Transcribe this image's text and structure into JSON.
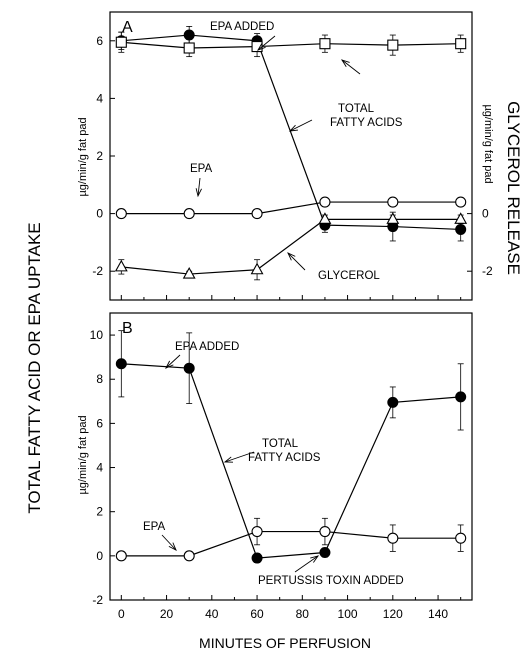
{
  "figure": {
    "left_label": "TOTAL FATTY ACID OR EPA UPTAKE",
    "right_label": "GLYCEROL RELEASE",
    "xlabel": "MINUTES OF PERFUSION"
  },
  "chart_data": [
    {
      "type": "line",
      "panel_label": "A",
      "ylabel": "µg/min/g fat pad",
      "right_axis_label": "µg/min/g fat pad",
      "xlim": [
        -5,
        155
      ],
      "ylim": [
        -3,
        7
      ],
      "yticks": [
        -2,
        0,
        2,
        4,
        6
      ],
      "right_yticks": [
        -2,
        0
      ],
      "x": [
        0,
        30,
        60,
        90,
        120,
        150
      ],
      "series": [
        {
          "marker": "filled-circle",
          "x": [
            0,
            30,
            60,
            90,
            120,
            150
          ],
          "values": [
            6.0,
            6.2,
            6.0,
            -0.4,
            -0.45,
            -0.55
          ],
          "err": [
            0.3,
            0.3,
            0.25,
            0.25,
            0.5,
            0.4
          ]
        },
        {
          "marker": "open-square",
          "x": [
            0,
            30,
            60,
            90,
            120,
            150
          ],
          "values": [
            5.95,
            5.75,
            5.8,
            5.9,
            5.85,
            5.9
          ],
          "err": [
            0.35,
            0.3,
            0.35,
            0.3,
            0.35,
            0.3
          ]
        },
        {
          "marker": "open-circle",
          "x": [
            0,
            30,
            60,
            90,
            120,
            150
          ],
          "values": [
            0.0,
            0.0,
            0.0,
            0.4,
            0.4,
            0.4
          ],
          "err": [
            0,
            0,
            0,
            0,
            0,
            0
          ]
        },
        {
          "marker": "open-triangle",
          "x": [
            0,
            30,
            60,
            90,
            120,
            150
          ],
          "values": [
            -1.85,
            -2.1,
            -1.95,
            -0.2,
            -0.2,
            -0.2
          ],
          "err": [
            0.25,
            0.1,
            0.35,
            0.15,
            0.15,
            0.15
          ]
        }
      ],
      "annotations": [
        {
          "key": "epa_added",
          "text": "EPA ADDED"
        },
        {
          "key": "total_fa",
          "text": "TOTAL"
        },
        {
          "key": "total_fa2",
          "text": "FATTY ACIDS"
        },
        {
          "key": "epa",
          "text": "EPA"
        },
        {
          "key": "glycerol",
          "text": "GLYCEROL"
        }
      ]
    },
    {
      "type": "line",
      "panel_label": "B",
      "ylabel": "µg/min/g fat pad",
      "xlim": [
        -5,
        155
      ],
      "ylim": [
        -2,
        11
      ],
      "yticks": [
        -2,
        0,
        2,
        4,
        6,
        8,
        10
      ],
      "xticks": [
        0,
        20,
        40,
        60,
        80,
        100,
        120,
        140
      ],
      "series": [
        {
          "marker": "filled-circle",
          "x": [
            0,
            30,
            60,
            90,
            120,
            150
          ],
          "values": [
            8.7,
            8.5,
            -0.1,
            0.15,
            6.95,
            7.2
          ],
          "err": [
            1.5,
            1.6,
            0.2,
            0.2,
            0.7,
            1.5
          ]
        },
        {
          "marker": "open-circle",
          "x": [
            0,
            30,
            60,
            90,
            120,
            150
          ],
          "values": [
            0.0,
            0.0,
            1.1,
            1.1,
            0.8,
            0.8
          ],
          "err": [
            0,
            0,
            0.6,
            0.6,
            0.6,
            0.6
          ]
        }
      ],
      "annotations": [
        {
          "key": "epa_added",
          "text": "EPA ADDED"
        },
        {
          "key": "total_fa",
          "text": "TOTAL"
        },
        {
          "key": "total_fa2",
          "text": "FATTY ACIDS"
        },
        {
          "key": "epa",
          "text": "EPA"
        },
        {
          "key": "pertussis",
          "text": "PERTUSSIS TOXIN ADDED"
        }
      ]
    }
  ]
}
